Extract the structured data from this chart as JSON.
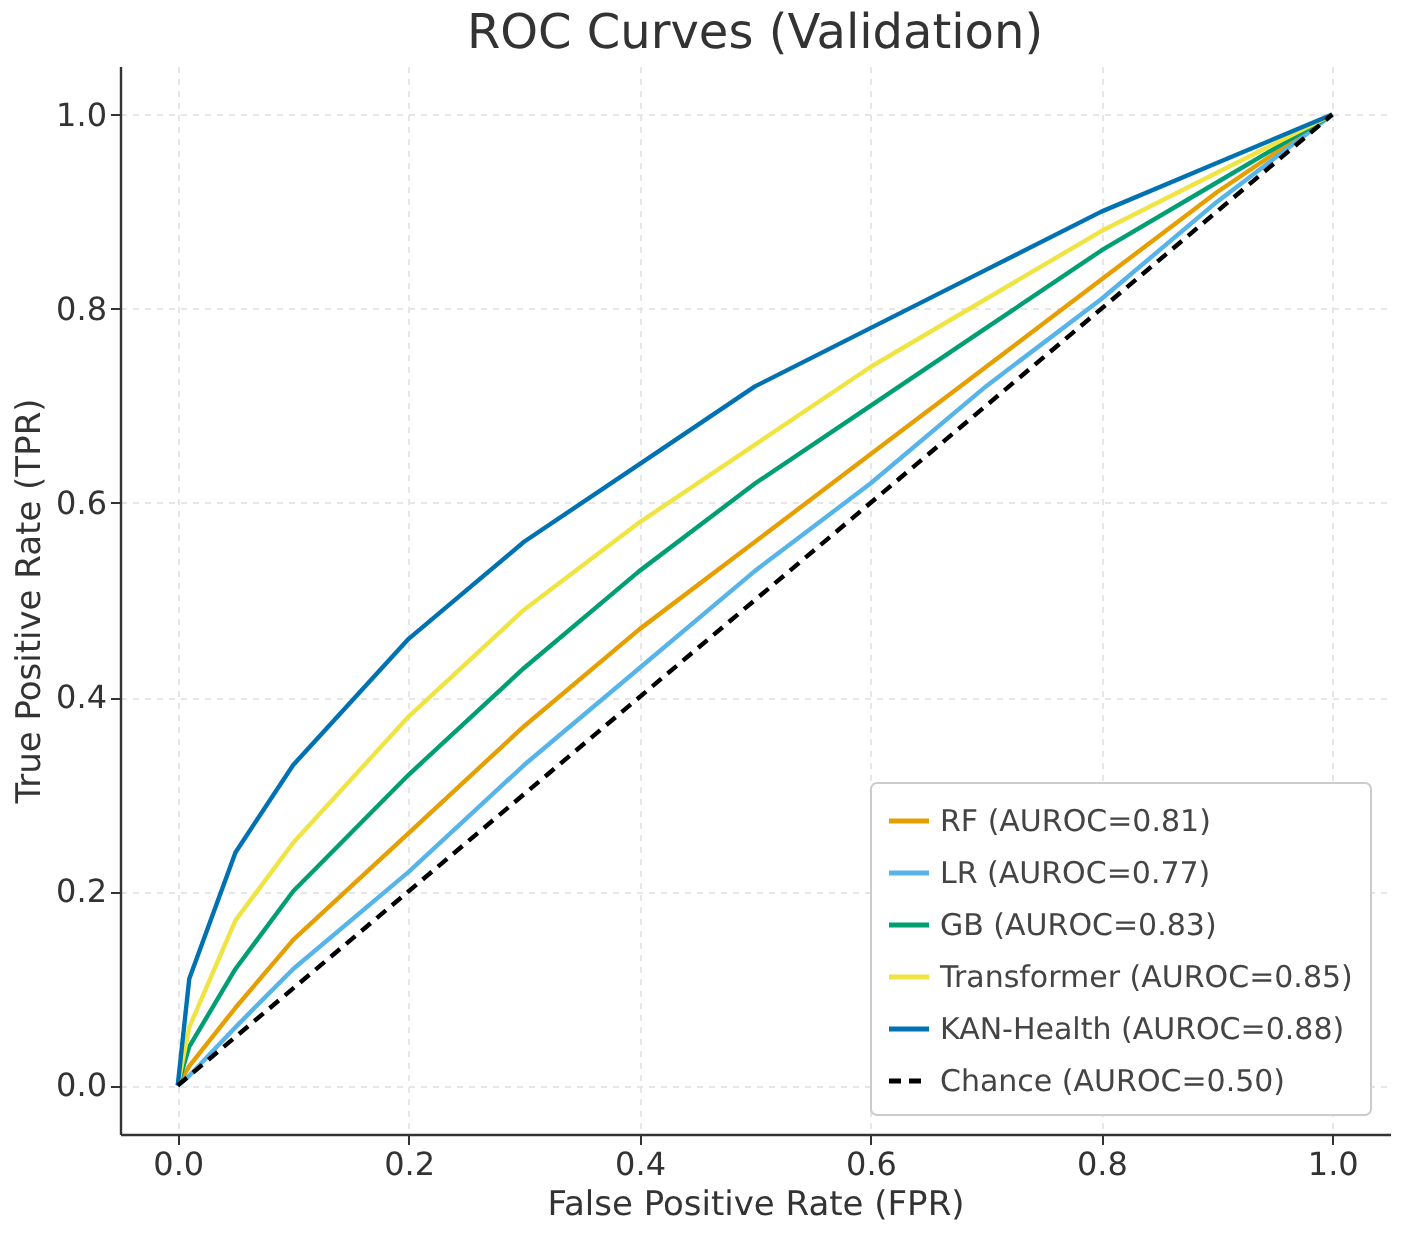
{
  "chart_data": {
    "type": "line",
    "title": "ROC Curves (Validation)",
    "xlabel": "False Positive Rate (FPR)",
    "ylabel": "True Positive Rate (TPR)",
    "x": [
      0,
      0.01,
      0.05,
      0.1,
      0.2,
      0.3,
      0.4,
      0.5,
      0.6,
      0.7,
      0.8,
      0.9,
      1.0
    ],
    "series": [
      {
        "name": "RF (AUROC=0.81)",
        "color": "#e69f00",
        "values": [
          0,
          0.02,
          0.08,
          0.15,
          0.26,
          0.37,
          0.47,
          0.56,
          0.65,
          0.74,
          0.83,
          0.92,
          1.0
        ]
      },
      {
        "name": "LR (AUROC=0.77)",
        "color": "#56b4e9",
        "values": [
          0,
          0.01,
          0.06,
          0.12,
          0.22,
          0.33,
          0.43,
          0.53,
          0.62,
          0.72,
          0.81,
          0.91,
          1.0
        ]
      },
      {
        "name": "GB (AUROC=0.83)",
        "color": "#009e73",
        "values": [
          0,
          0.04,
          0.12,
          0.2,
          0.32,
          0.43,
          0.53,
          0.62,
          0.7,
          0.78,
          0.86,
          0.93,
          1.0
        ]
      },
      {
        "name": "Transformer (AUROC=0.85)",
        "color": "#f0e442",
        "values": [
          0,
          0.06,
          0.17,
          0.25,
          0.38,
          0.49,
          0.58,
          0.66,
          0.74,
          0.81,
          0.88,
          0.94,
          1.0
        ]
      },
      {
        "name": "KAN-Health (AUROC=0.88)",
        "color": "#0072b2",
        "values": [
          0,
          0.11,
          0.24,
          0.33,
          0.46,
          0.56,
          0.64,
          0.72,
          0.78,
          0.84,
          0.9,
          0.95,
          1.0
        ]
      },
      {
        "name": "Chance (AUROC=0.50)",
        "color": "#000000",
        "line_style": "dashed",
        "x": [
          0,
          1.0
        ],
        "values": [
          0,
          1.0
        ]
      }
    ],
    "xlim": [
      -0.05,
      1.05
    ],
    "ylim": [
      -0.05,
      1.05
    ],
    "xticks": [
      {
        "value": 0,
        "label": "0.0"
      },
      0.2,
      0.4,
      0.6,
      0.8,
      {
        "value": 1,
        "label": "1.0"
      }
    ],
    "yticks": [
      {
        "value": 0,
        "label": "0.0"
      },
      0.2,
      0.4,
      0.6,
      0.8,
      {
        "value": 1,
        "label": "1.0"
      }
    ],
    "grid": true,
    "legend": "bottom right",
    "marker": "none",
    "line_style": "solid"
  }
}
